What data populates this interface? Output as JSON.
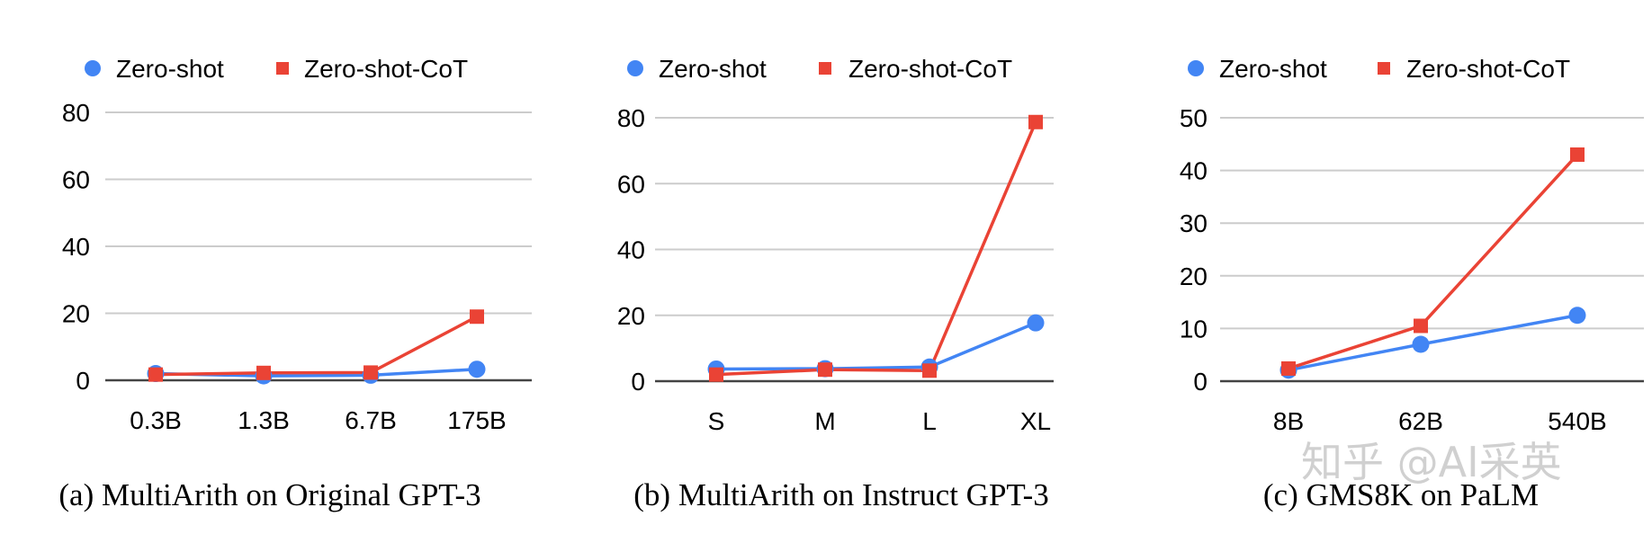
{
  "colors": {
    "zero_shot": "#4285f4",
    "zero_shot_cot": "#ea4335",
    "grid": "#cccccc",
    "baseline": "#444444"
  },
  "watermark": "知乎 @AI采英",
  "chart_data": [
    {
      "type": "line",
      "caption": "(a) MultiArith on Original GPT-3",
      "categories": [
        "0.3B",
        "1.3B",
        "6.7B",
        "175B"
      ],
      "yticks": [
        "0",
        "20",
        "40",
        "60",
        "80"
      ],
      "ylim": [
        0,
        80
      ],
      "grid": true,
      "legend": "top",
      "series": [
        {
          "name": "Zero-shot",
          "marker": "circle",
          "values": [
            2.0,
            1.3,
            1.5,
            3.3
          ]
        },
        {
          "name": "Zero-shot-CoT",
          "marker": "square",
          "values": [
            1.7,
            2.2,
            2.3,
            19.0
          ]
        }
      ]
    },
    {
      "type": "line",
      "caption": "(b) MultiArith on Instruct GPT-3",
      "categories": [
        "S",
        "M",
        "L",
        "XL"
      ],
      "yticks": [
        "0",
        "20",
        "40",
        "60",
        "80"
      ],
      "ylim": [
        0,
        80
      ],
      "grid": true,
      "legend": "top",
      "series": [
        {
          "name": "Zero-shot",
          "marker": "circle",
          "values": [
            3.7,
            3.8,
            4.3,
            17.7
          ]
        },
        {
          "name": "Zero-shot-CoT",
          "marker": "square",
          "values": [
            2.0,
            3.5,
            3.2,
            78.7
          ]
        }
      ]
    },
    {
      "type": "line",
      "caption": "(c) GMS8K on PaLM",
      "categories": [
        "8B",
        "62B",
        "540B"
      ],
      "yticks": [
        "0",
        "10",
        "20",
        "30",
        "40",
        "50"
      ],
      "ylim": [
        0,
        50
      ],
      "grid": true,
      "legend": "top",
      "series": [
        {
          "name": "Zero-shot",
          "marker": "circle",
          "values": [
            2.1,
            7.0,
            12.5
          ]
        },
        {
          "name": "Zero-shot-CoT",
          "marker": "square",
          "values": [
            2.4,
            10.5,
            43.0
          ]
        }
      ]
    }
  ]
}
